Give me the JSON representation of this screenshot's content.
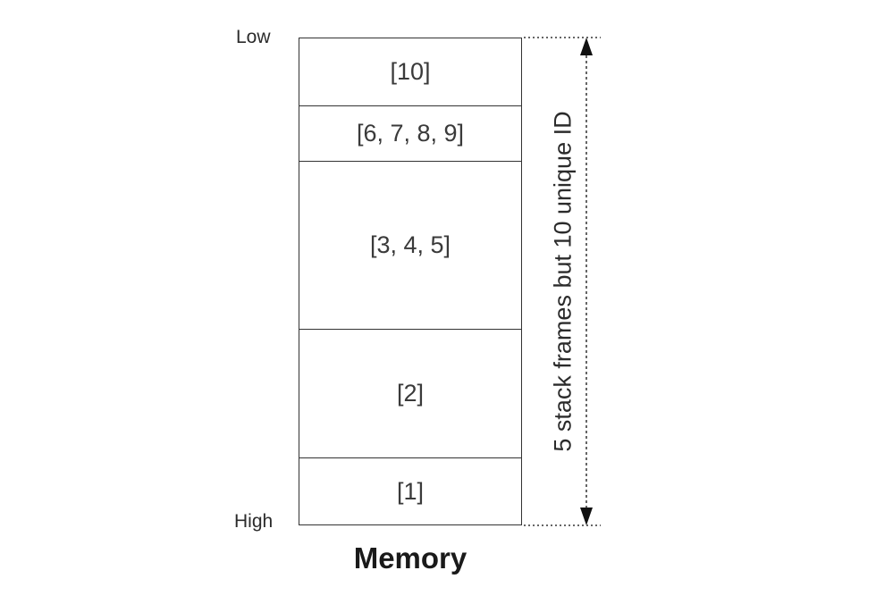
{
  "axis": {
    "low_label": "Low",
    "high_label": "High"
  },
  "memory": {
    "title": "Memory",
    "frames": [
      {
        "label": "[10]"
      },
      {
        "label": "[6, 7, 8, 9]"
      },
      {
        "label": "[3, 4, 5]"
      },
      {
        "label": "[2]"
      },
      {
        "label": "[1]"
      }
    ]
  },
  "annotation": {
    "text": "5 stack frames but 10 unique ID"
  },
  "colors": {
    "stroke": "#333333",
    "text": "#3a3a3a"
  }
}
